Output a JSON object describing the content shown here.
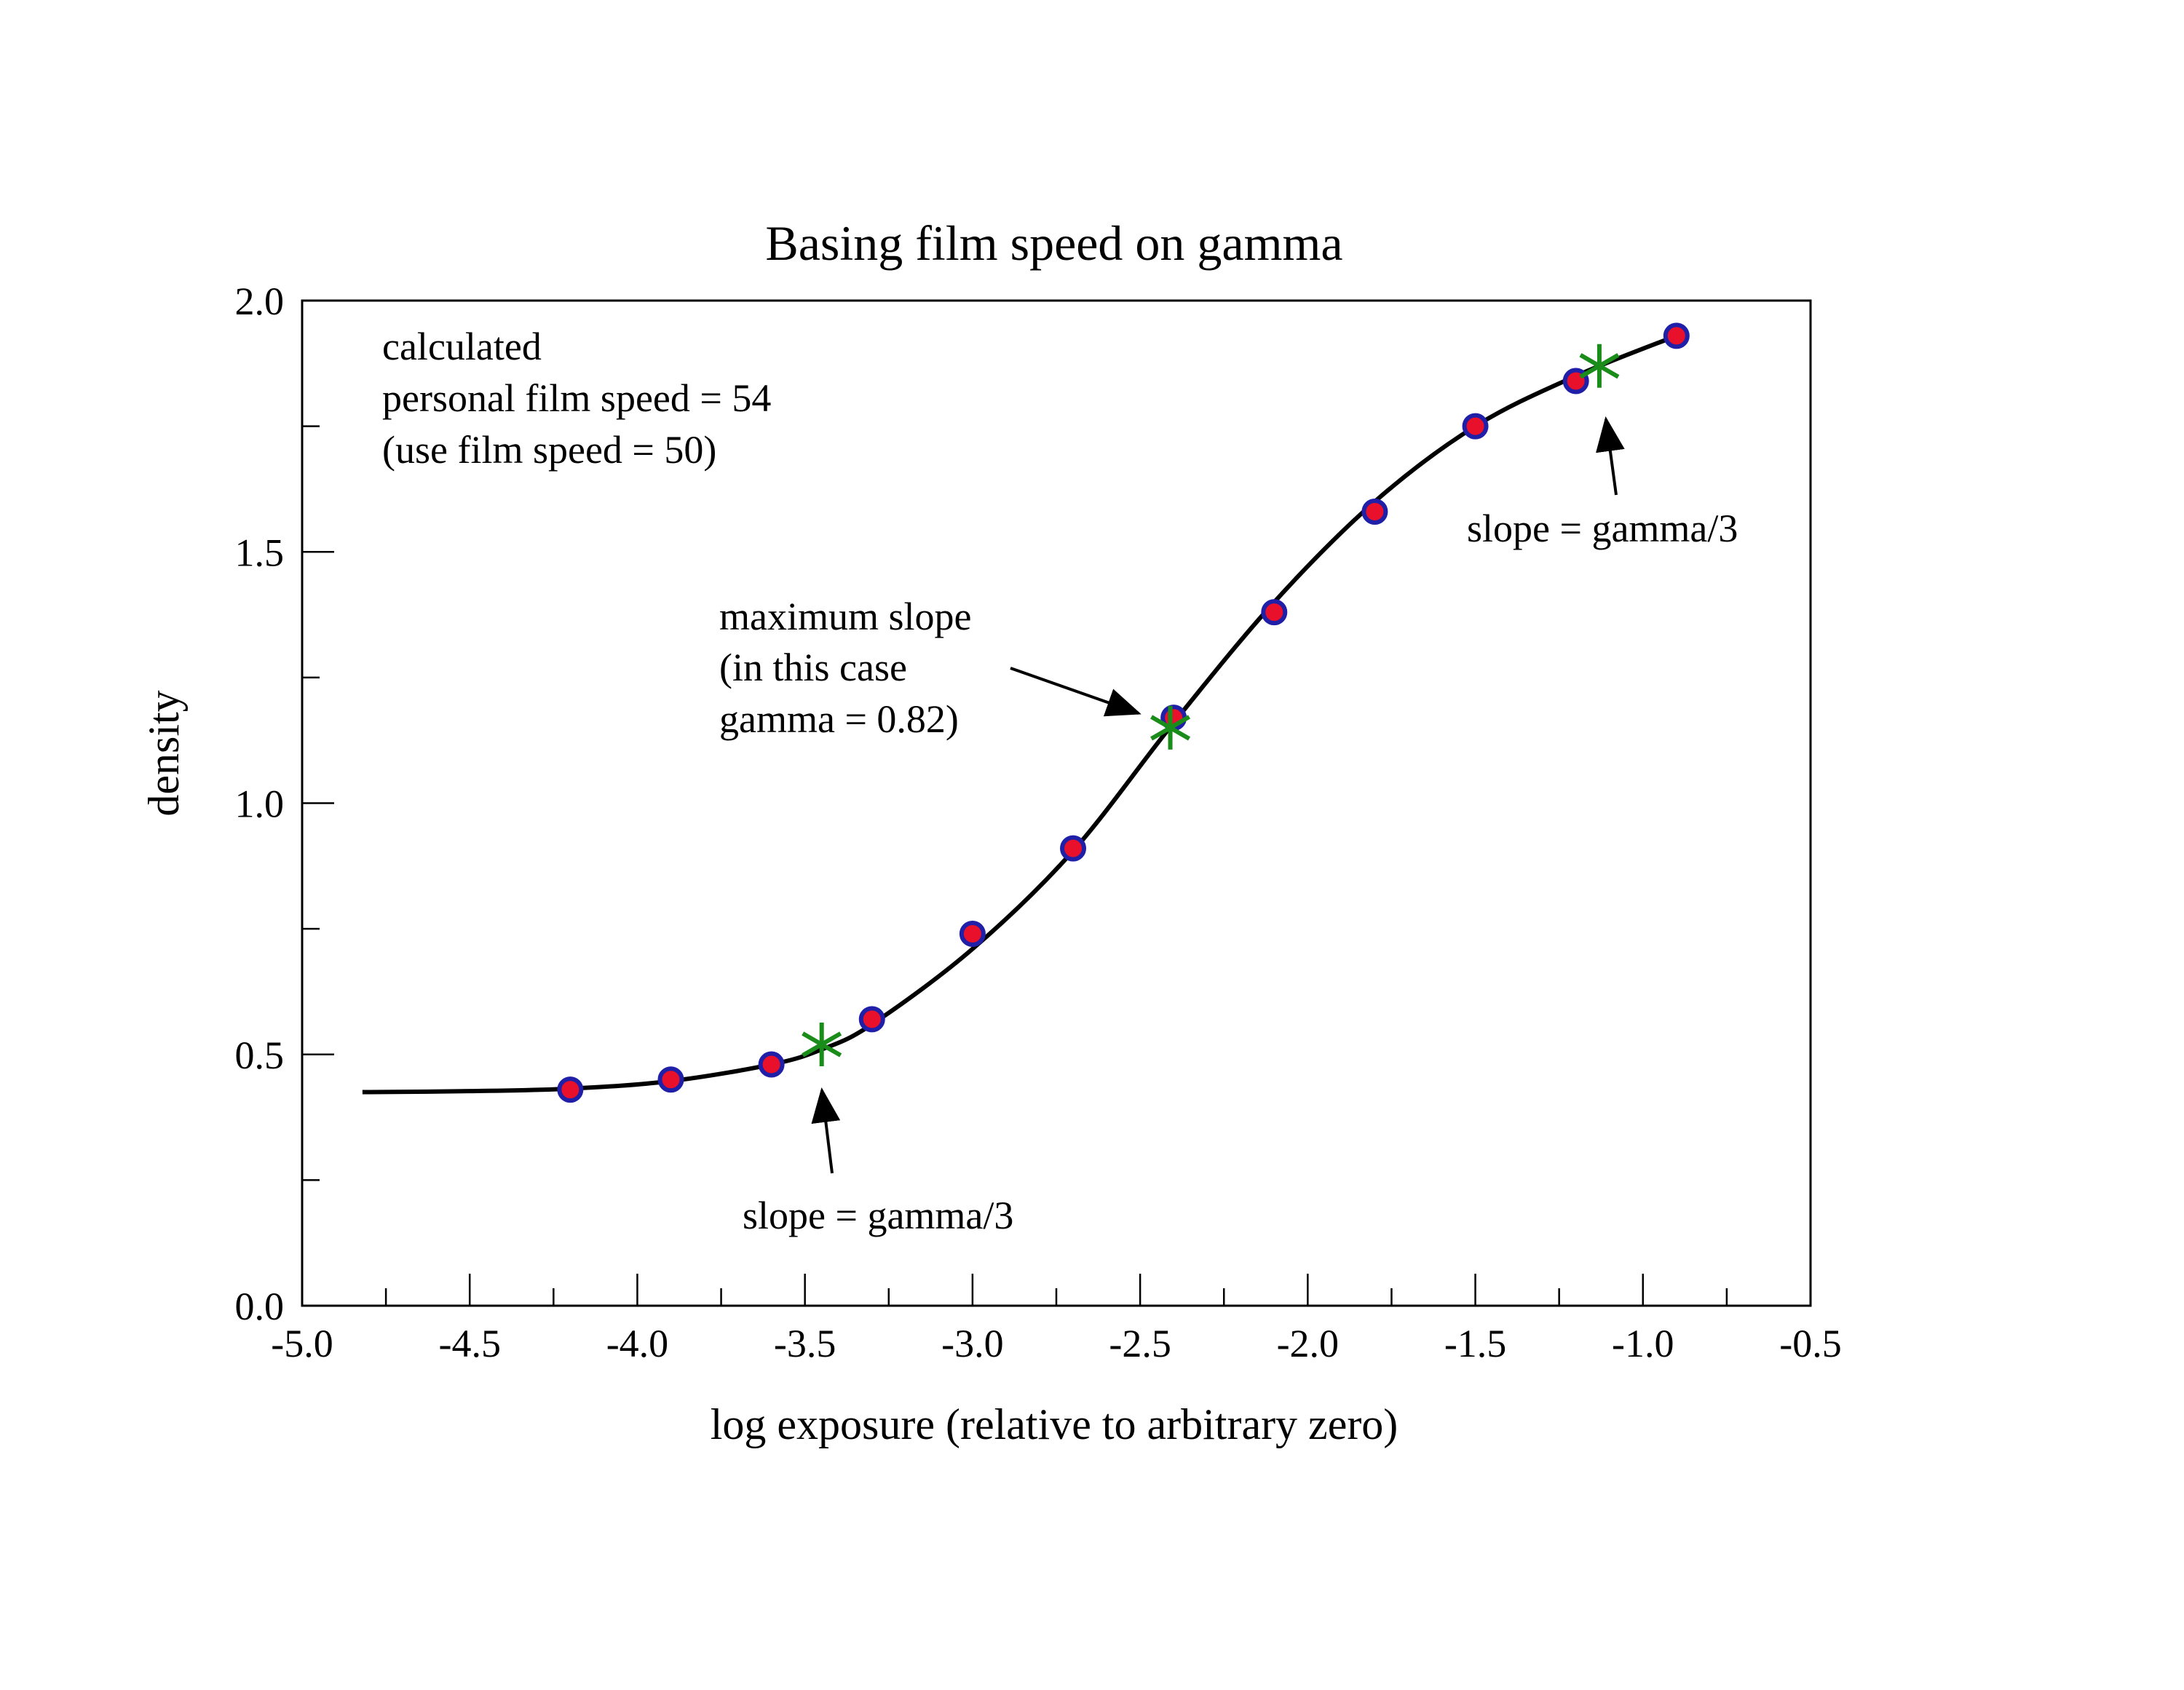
{
  "chart_data": {
    "type": "scatter",
    "title": "Basing film speed on gamma",
    "xlabel": "log exposure (relative to arbitrary zero)",
    "ylabel": "density",
    "xlim": [
      -5.0,
      -0.5
    ],
    "ylim": [
      0.0,
      2.0
    ],
    "x_ticks": [
      -5.0,
      -4.5,
      -4.0,
      -3.5,
      -3.0,
      -2.5,
      -2.0,
      -1.5,
      -1.0,
      -0.5
    ],
    "x_tick_labels": [
      "-5.0",
      "-4.5",
      "-4.0",
      "-3.5",
      "-3.0",
      "-2.5",
      "-2.0",
      "-1.5",
      "-1.0",
      "-0.5"
    ],
    "x_minor_ticks": [
      -4.75,
      -4.25,
      -3.75,
      -3.25,
      -2.75,
      -2.25,
      -1.75,
      -1.25,
      -0.75
    ],
    "y_ticks": [
      0.0,
      0.5,
      1.0,
      1.5,
      2.0
    ],
    "y_tick_labels": [
      "0.0",
      "0.5",
      "1.0",
      "1.5",
      "2.0"
    ],
    "y_minor_ticks": [
      0.25,
      0.75,
      1.25,
      1.75
    ],
    "grid": false,
    "series": [
      {
        "kind": "points",
        "x": [
          -4.2,
          -3.9,
          -3.6,
          -3.3,
          -3.0,
          -2.7,
          -2.4,
          -2.1,
          -1.8,
          -1.5,
          -1.2,
          -0.9
        ],
        "y": [
          0.43,
          0.45,
          0.48,
          0.57,
          0.74,
          0.91,
          1.17,
          1.38,
          1.58,
          1.75,
          1.84,
          1.93
        ],
        "color": "#e8102a",
        "edge_color": "#1f1fa8"
      },
      {
        "kind": "curve",
        "x": [
          -4.82,
          -4.5,
          -4.2,
          -3.9,
          -3.6,
          -3.45,
          -3.3,
          -3.0,
          -2.7,
          -2.4,
          -2.1,
          -1.8,
          -1.5,
          -1.2,
          -0.9
        ],
        "y": [
          0.425,
          0.427,
          0.432,
          0.447,
          0.48,
          0.51,
          0.56,
          0.71,
          0.905,
          1.16,
          1.4,
          1.6,
          1.75,
          1.85,
          1.93
        ],
        "color": "#000000"
      },
      {
        "kind": "markers",
        "x": [
          -3.45,
          -2.41,
          -1.13
        ],
        "y": [
          0.52,
          1.15,
          1.87
        ],
        "color": "#1a8c1a"
      }
    ],
    "annotations": {
      "speed_note": [
        "calculated",
        "personal film speed = 54",
        "(use film speed = 50)"
      ],
      "max_slope": [
        "maximum slope",
        "(in this case",
        "gamma = 0.82)"
      ],
      "slope_low": "slope = gamma/3",
      "slope_high": "slope = gamma/3"
    }
  }
}
